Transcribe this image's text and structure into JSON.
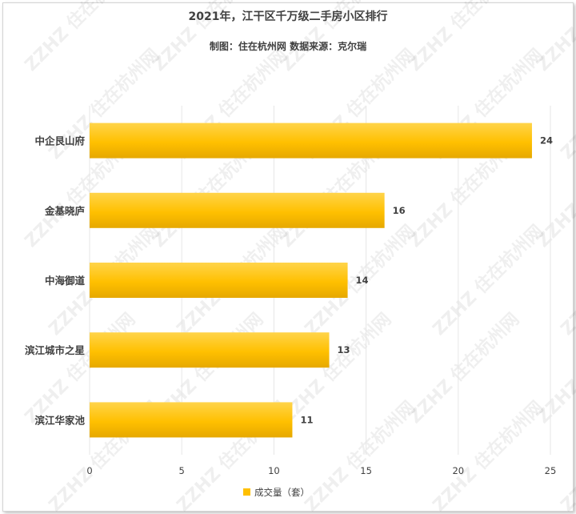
{
  "chart_data": {
    "type": "bar",
    "orientation": "horizontal",
    "title": "2021年，江干区千万级二手房小区排行",
    "subtitle": "制图：住在杭州网  数据来源：克尔瑞",
    "categories": [
      "中企艮山府",
      "金基晓庐",
      "中海御道",
      "滨江城市之星",
      "滨江华家池"
    ],
    "series": [
      {
        "name": "成交量（套）",
        "values": [
          24,
          16,
          14,
          13,
          11
        ]
      }
    ],
    "xlim": [
      0,
      25
    ],
    "xticks": [
      0,
      5,
      10,
      15,
      20,
      25
    ],
    "grid": true,
    "legend_position": "bottom",
    "bar_color": "#FFC000",
    "watermark": "ZZHZ 住在杭州网"
  }
}
